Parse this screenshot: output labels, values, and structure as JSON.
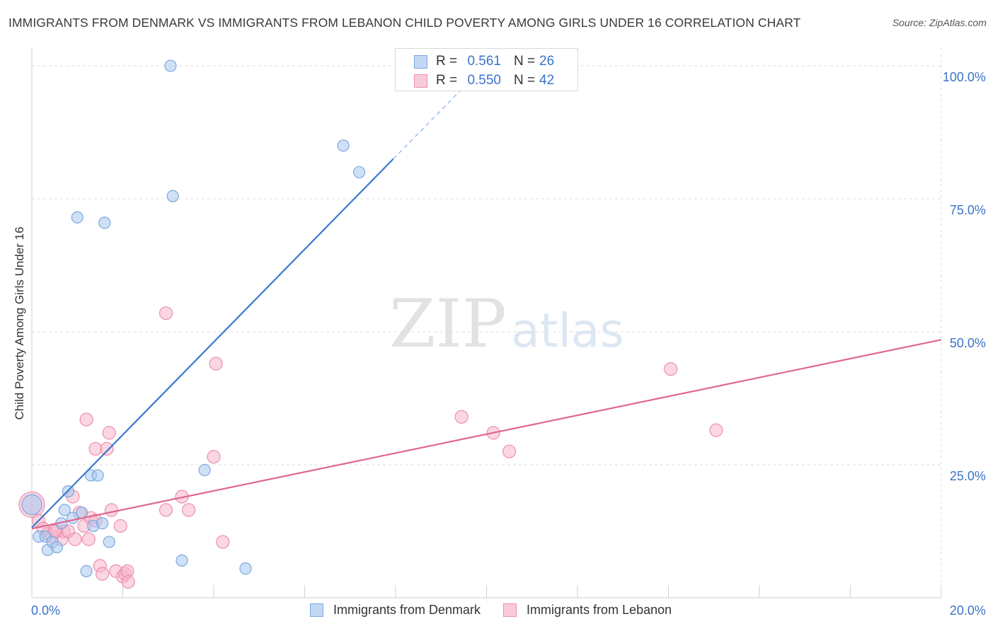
{
  "header": {
    "title": "IMMIGRANTS FROM DENMARK VS IMMIGRANTS FROM LEBANON CHILD POVERTY AMONG GIRLS UNDER 16 CORRELATION CHART",
    "source": "Source: ZipAtlas.com"
  },
  "watermark": {
    "zip": "ZIP",
    "atlas": "atlas"
  },
  "legend": {
    "r_label": "R =",
    "n_label": "N =",
    "denmark": {
      "r": "0.561",
      "n": "26"
    },
    "lebanon": {
      "r": "0.550",
      "n": "42"
    }
  },
  "colors": {
    "denmark_fill": "#a8c8f0",
    "denmark_stroke": "#7ba7e0",
    "denmark_line": "#3a78cf",
    "lebanon_fill": "#f7b6ca",
    "lebanon_stroke": "#eb8fad",
    "lebanon_line": "#e0668f",
    "tick_label": "#3b73c9",
    "grid": "#dcdcdc"
  },
  "chart_data": {
    "type": "scatter",
    "title": "IMMIGRANTS FROM DENMARK VS IMMIGRANTS FROM LEBANON CHILD POVERTY AMONG GIRLS UNDER 16 CORRELATION CHART",
    "xlabel": "",
    "ylabel": "Child Poverty Among Girls Under 16",
    "xlim": [
      0,
      20
    ],
    "ylim": [
      0,
      102
    ],
    "x_tick_labels": [
      "0.0%",
      "20.0%"
    ],
    "y_ticks": [
      25,
      50,
      75,
      100
    ],
    "y_tick_labels": [
      "25.0%",
      "50.0%",
      "75.0%",
      "100.0%"
    ],
    "legend_position": "bottom-center",
    "series": [
      {
        "name": "Immigrants from Denmark",
        "r": 0.561,
        "n": 26,
        "trend": {
          "x0": 0.0,
          "y0": 13.2,
          "x1": 7.95,
          "y1": 82.5,
          "dash_x1": 9.5,
          "dash_y1": 96.0
        },
        "points": [
          [
            0.0,
            17.5,
            14
          ],
          [
            0.15,
            11.5,
            8
          ],
          [
            0.3,
            11.5,
            8
          ],
          [
            0.35,
            9.0,
            8
          ],
          [
            0.45,
            10.5,
            8
          ],
          [
            0.55,
            9.5,
            8
          ],
          [
            0.65,
            14.0,
            8
          ],
          [
            0.72,
            16.5,
            8
          ],
          [
            0.8,
            20.0,
            8
          ],
          [
            0.9,
            15.0,
            8
          ],
          [
            1.1,
            16.0,
            8
          ],
          [
            1.2,
            5.0,
            8
          ],
          [
            1.3,
            23.0,
            8
          ],
          [
            1.35,
            13.5,
            8
          ],
          [
            1.45,
            23.0,
            8
          ],
          [
            1.55,
            14.0,
            8
          ],
          [
            1.7,
            10.5,
            8
          ],
          [
            1.0,
            71.5,
            8
          ],
          [
            1.6,
            70.5,
            8
          ],
          [
            3.05,
            100.0,
            8
          ],
          [
            3.1,
            75.5,
            8
          ],
          [
            3.3,
            7.0,
            8
          ],
          [
            3.8,
            24.0,
            8
          ],
          [
            4.7,
            5.5,
            8
          ],
          [
            6.85,
            85.0,
            8
          ],
          [
            7.2,
            80.0,
            8
          ]
        ]
      },
      {
        "name": "Immigrants from Lebanon",
        "r": 0.55,
        "n": 42,
        "trend": {
          "x0": 0.0,
          "y0": 13.0,
          "x1": 20.0,
          "y1": 48.5
        },
        "points": [
          [
            0.0,
            17.5,
            18
          ],
          [
            0.15,
            14.5,
            9
          ],
          [
            0.25,
            13.0,
            9
          ],
          [
            0.35,
            12.0,
            9
          ],
          [
            0.45,
            11.5,
            9
          ],
          [
            0.55,
            12.5,
            9
          ],
          [
            0.65,
            11.0,
            9
          ],
          [
            0.7,
            12.5,
            9
          ],
          [
            0.8,
            12.5,
            9
          ],
          [
            0.9,
            19.0,
            9
          ],
          [
            0.95,
            11.0,
            9
          ],
          [
            1.05,
            16.0,
            9
          ],
          [
            1.15,
            13.5,
            9
          ],
          [
            1.25,
            11.0,
            9
          ],
          [
            1.3,
            15.0,
            9
          ],
          [
            1.4,
            14.5,
            9
          ],
          [
            1.2,
            33.5,
            9
          ],
          [
            1.4,
            28.0,
            9
          ],
          [
            1.5,
            6.0,
            9
          ],
          [
            1.55,
            4.5,
            9
          ],
          [
            1.65,
            28.0,
            9
          ],
          [
            1.7,
            31.0,
            9
          ],
          [
            1.75,
            16.5,
            9
          ],
          [
            1.85,
            5.0,
            9
          ],
          [
            1.95,
            13.5,
            9
          ],
          [
            2.0,
            4.0,
            9
          ],
          [
            2.05,
            4.5,
            9
          ],
          [
            2.1,
            5.0,
            9
          ],
          [
            2.12,
            3.0,
            9
          ],
          [
            2.95,
            53.5,
            9
          ],
          [
            2.95,
            16.5,
            9
          ],
          [
            3.3,
            19.0,
            9
          ],
          [
            3.45,
            16.5,
            9
          ],
          [
            4.0,
            26.5,
            9
          ],
          [
            4.05,
            44.0,
            9
          ],
          [
            4.2,
            10.5,
            9
          ],
          [
            9.45,
            34.0,
            9
          ],
          [
            10.15,
            31.0,
            9
          ],
          [
            10.5,
            27.5,
            9
          ],
          [
            14.05,
            43.0,
            9
          ],
          [
            15.05,
            31.5,
            9
          ],
          [
            0.5,
            12.5,
            9
          ]
        ]
      }
    ]
  }
}
